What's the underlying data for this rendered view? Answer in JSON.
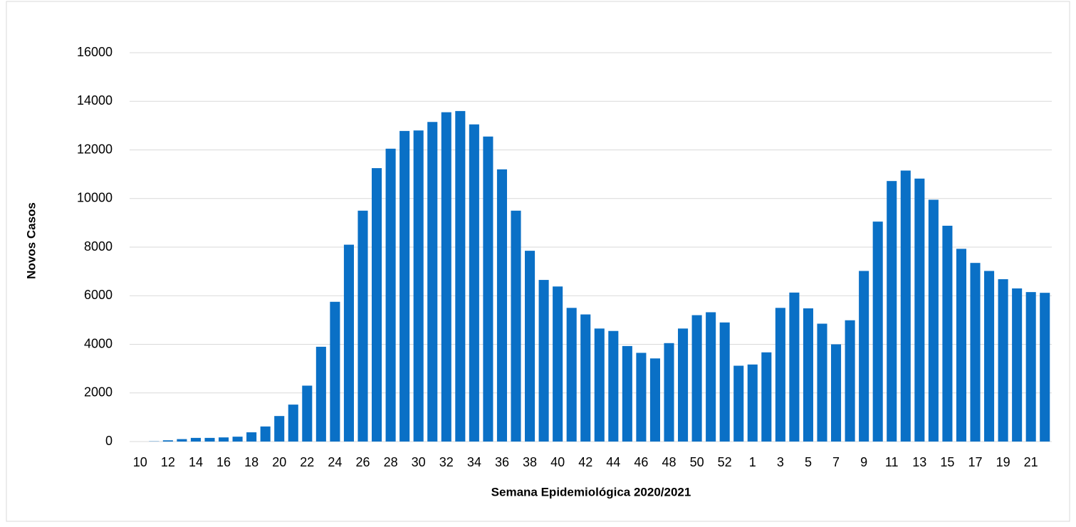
{
  "chart_data": {
    "type": "bar",
    "x_label": "Semana Epidemiológica 2020/2021",
    "y_label": "Novos Casos",
    "categories": [
      "10",
      null,
      "12",
      null,
      "14",
      null,
      "16",
      null,
      "18",
      null,
      "20",
      null,
      "22",
      null,
      "24",
      null,
      "26",
      null,
      "28",
      null,
      "30",
      null,
      "32",
      null,
      "34",
      null,
      "36",
      null,
      "38",
      null,
      "40",
      null,
      "42",
      null,
      "44",
      null,
      "46",
      null,
      "48",
      null,
      "50",
      null,
      "52",
      null,
      "1",
      null,
      "3",
      null,
      "5",
      null,
      "7",
      null,
      "9",
      null,
      "11",
      null,
      "13",
      null,
      "15",
      null,
      "17",
      null,
      "19",
      null,
      "21",
      null
    ],
    "values": [
      0,
      10,
      50,
      100,
      150,
      150,
      170,
      200,
      380,
      620,
      1050,
      1520,
      2300,
      3900,
      5750,
      8100,
      9500,
      11250,
      12050,
      12780,
      12800,
      13150,
      13550,
      13600,
      13050,
      12550,
      11200,
      9500,
      7850,
      6650,
      6380,
      5500,
      5230,
      4650,
      4550,
      3930,
      3650,
      3420,
      4050,
      4650,
      5200,
      5320,
      4900,
      3120,
      3170,
      3670,
      5500,
      6130,
      5480,
      4850,
      4000,
      4990,
      7020,
      9050,
      10720,
      11150,
      10820,
      9950,
      8880,
      7930,
      7350,
      7020,
      6680,
      6300,
      6150,
      6120
    ],
    "color": "#0a70c6",
    "ylim": [
      0,
      16000
    ],
    "yticks": [
      0,
      2000,
      4000,
      6000,
      8000,
      10000,
      12000,
      14000,
      16000
    ],
    "grid": true
  }
}
